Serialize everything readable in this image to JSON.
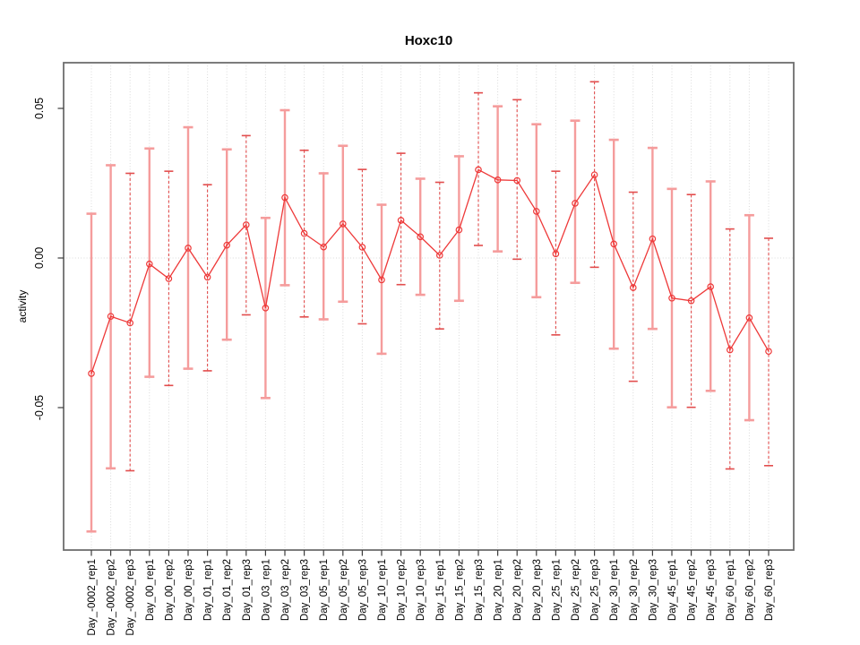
{
  "page": {
    "background": "#ffffff"
  },
  "chart_data": {
    "type": "line",
    "subtype": "points-with-error-bars",
    "title": "Hoxc10",
    "xlabel": "",
    "ylabel": "activity",
    "legend": "none",
    "grid": {
      "vertical_dotted_per_category": true,
      "horizontal_dotted_at_zero": true
    },
    "ylim": [
      -0.098,
      0.065
    ],
    "yticks": [
      {
        "label": "0.05",
        "value": 0.05
      },
      {
        "label": "0.00",
        "value": 0.0
      },
      {
        "label": "-0.05",
        "value": -0.05
      }
    ],
    "categories": [
      "Day_-0002_rep1",
      "Day_-0002_rep2",
      "Day_-0002_rep3",
      "Day_00_rep1",
      "Day_00_rep2",
      "Day_00_rep3",
      "Day_01_rep1",
      "Day_01_rep2",
      "Day_01_rep3",
      "Day_03_rep1",
      "Day_03_rep2",
      "Day_03_rep3",
      "Day_05_rep1",
      "Day_05_rep2",
      "Day_05_rep3",
      "Day_10_rep1",
      "Day_10_rep2",
      "Day_10_rep3",
      "Day_15_rep1",
      "Day_15_rep2",
      "Day_15_rep3",
      "Day_20_rep1",
      "Day_20_rep2",
      "Day_20_rep3",
      "Day_25_rep1",
      "Day_25_rep2",
      "Day_25_rep3",
      "Day_30_rep1",
      "Day_30_rep2",
      "Day_30_rep3",
      "Day_45_rep1",
      "Day_45_rep2",
      "Day_45_rep3",
      "Day_60_rep1",
      "Day_60_rep2",
      "Day_60_rep3"
    ],
    "series": [
      {
        "name": "activity",
        "values": [
          -0.0386,
          -0.0195,
          -0.0217,
          -0.002,
          -0.0069,
          0.0033,
          -0.0064,
          0.0043,
          0.0111,
          -0.0167,
          0.0202,
          0.0082,
          0.0037,
          0.0114,
          0.0036,
          -0.0073,
          0.0126,
          0.0071,
          0.0009,
          0.0094,
          0.0295,
          0.0261,
          0.0259,
          0.0156,
          0.0014,
          0.0183,
          0.0278,
          0.0047,
          -0.0099,
          0.0064,
          -0.0134,
          -0.0143,
          -0.0096,
          -0.0307,
          -0.02,
          -0.0312
        ],
        "upper": [
          0.0148,
          0.031,
          0.0283,
          0.0366,
          0.029,
          0.0437,
          0.0245,
          0.0363,
          0.0409,
          0.0134,
          0.0494,
          0.036,
          0.0283,
          0.0375,
          0.0296,
          0.0178,
          0.035,
          0.0265,
          0.0253,
          0.034,
          0.0552,
          0.0507,
          0.0529,
          0.0447,
          0.029,
          0.0459,
          0.0589,
          0.0395,
          0.022,
          0.0368,
          0.0231,
          0.0212,
          0.0256,
          0.0097,
          0.0143,
          0.0066
        ],
        "lower": [
          -0.0914,
          -0.0703,
          -0.0711,
          -0.0397,
          -0.0426,
          -0.037,
          -0.0377,
          -0.0273,
          -0.019,
          -0.0468,
          -0.0091,
          -0.0197,
          -0.0205,
          -0.0146,
          -0.022,
          -0.032,
          -0.0089,
          -0.0123,
          -0.0237,
          -0.0143,
          0.0042,
          0.0022,
          -0.0004,
          -0.0131,
          -0.0257,
          -0.0083,
          -0.0031,
          -0.0303,
          -0.0412,
          -0.0237,
          -0.0499,
          -0.0499,
          -0.0444,
          -0.0705,
          -0.0542,
          -0.0694
        ],
        "bar_styles": [
          "solid",
          "solid",
          "dashed",
          "solid",
          "dashed",
          "solid",
          "dashed",
          "solid",
          "dashed",
          "solid",
          "solid",
          "dashed",
          "solid",
          "solid",
          "dashed",
          "solid",
          "dashed",
          "solid",
          "dashed",
          "solid",
          "dashed",
          "solid",
          "dashed",
          "solid",
          "dashed",
          "solid",
          "dashed",
          "solid",
          "dashed",
          "solid",
          "solid",
          "dashed",
          "solid",
          "dashed",
          "solid",
          "dashed"
        ]
      }
    ],
    "colors": {
      "point_line_red": "#ee3939",
      "error_bar_solid": "#f59c9c",
      "error_bar_dashed": "#e24d4d",
      "grid_gray": "#d9d9d9",
      "box_gray": "#6e6e6e",
      "tick_dark": "#3d3d3d",
      "text_black": "#000000"
    }
  }
}
